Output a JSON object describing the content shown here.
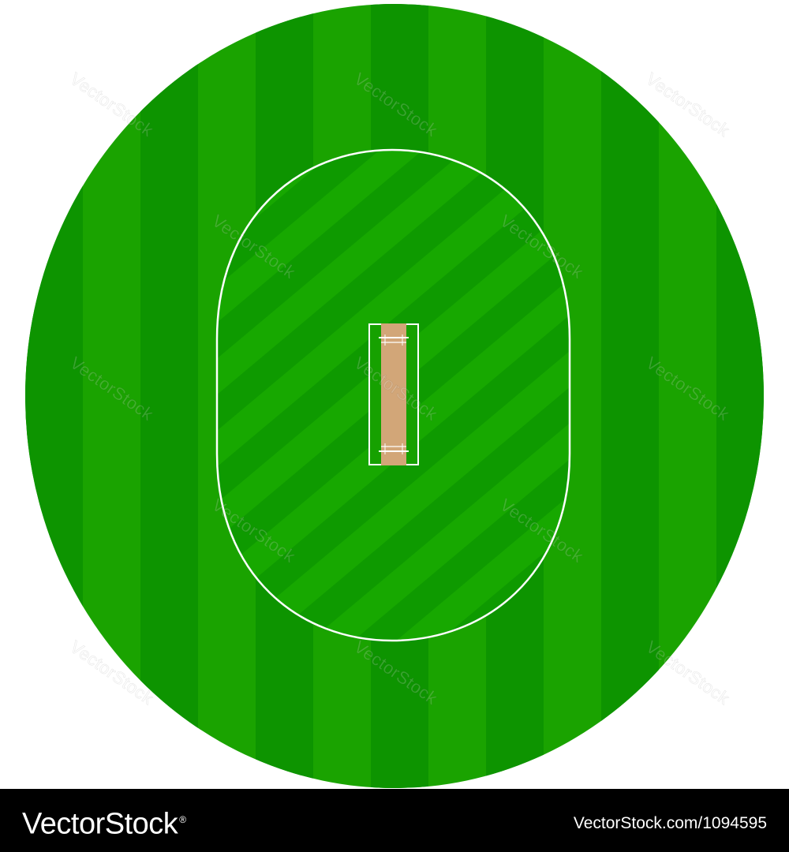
{
  "colors": {
    "outfield_light": "#1aa300",
    "outfield_dark": "#0d9400",
    "infield_line": "#ffffff",
    "pitch": "#d2a678",
    "pitch_border": "#ffffff",
    "footer_bg": "#000000",
    "footer_text": "#ffffff"
  },
  "watermark": {
    "text": "VectorStock"
  },
  "footer": {
    "brand": "VectorStock",
    "brand_mark": "®",
    "reference": "VectorStock.com/1094595"
  }
}
